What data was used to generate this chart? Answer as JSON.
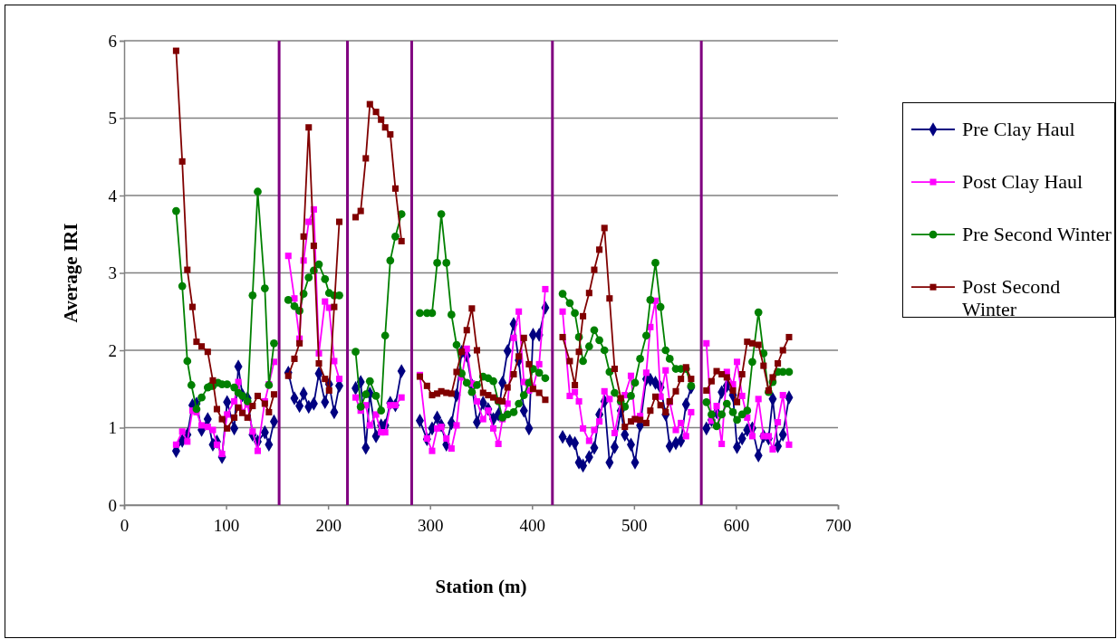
{
  "chart_data": {
    "type": "line",
    "xlabel": "Station (m)",
    "ylabel": "Average IRI",
    "xlim": [
      0,
      700
    ],
    "xticks": [
      0,
      100,
      200,
      300,
      400,
      500,
      600,
      700
    ],
    "ylim": [
      0,
      6
    ],
    "yticks": [
      0,
      1,
      2,
      3,
      4,
      5,
      6
    ],
    "grid": "y",
    "legend": "right",
    "ref_lines": [
      {
        "axis": "x",
        "value": 152,
        "color": "#800080"
      },
      {
        "axis": "x",
        "value": 219,
        "color": "#800080"
      },
      {
        "axis": "x",
        "value": 282,
        "color": "#800080"
      },
      {
        "axis": "x",
        "value": 420,
        "color": "#800080"
      },
      {
        "axis": "x",
        "value": 566,
        "color": "#800080"
      }
    ],
    "series": [
      {
        "name": "Pre Clay Haul",
        "color": "#000080",
        "marker": "diamond",
        "x": [
          51,
          57,
          62,
          67,
          71,
          76,
          82,
          87,
          91,
          96,
          101,
          108,
          112,
          116,
          121,
          126,
          131,
          138,
          142,
          147,
          152,
          161,
          167,
          172,
          176,
          181,
          186,
          191,
          197,
          201,
          206,
          211,
          219,
          227,
          232,
          237,
          241,
          247,
          252,
          256,
          261,
          266,
          272,
          282,
          290,
          297,
          302,
          307,
          311,
          316,
          321,
          326,
          331,
          336,
          341,
          346,
          352,
          357,
          362,
          367,
          371,
          376,
          382,
          387,
          392,
          397,
          401,
          407,
          413,
          420,
          430,
          437,
          442,
          446,
          450,
          456,
          461,
          466,
          471,
          476,
          481,
          487,
          491,
          497,
          501,
          506,
          512,
          516,
          521,
          526,
          531,
          535,
          541,
          546,
          551,
          556,
          566,
          571,
          576,
          581,
          586,
          591,
          597,
          601,
          606,
          611,
          616,
          622,
          627,
          632,
          636,
          641,
          646,
          652
        ],
        "values": [
          0.7,
          0.83,
          0.91,
          1.29,
          1.31,
          0.97,
          1.11,
          0.78,
          0.82,
          0.62,
          1.33,
          0.99,
          1.79,
          1.42,
          1.38,
          0.91,
          0.82,
          0.94,
          0.78,
          1.08,
          null,
          1.71,
          1.38,
          1.28,
          1.44,
          1.27,
          1.31,
          1.7,
          1.33,
          1.56,
          1.2,
          1.54,
          null,
          1.51,
          1.59,
          0.74,
          1.44,
          0.89,
          1.03,
          1.03,
          1.32,
          1.29,
          1.73,
          null,
          1.09,
          0.85,
          0.99,
          1.13,
          1.03,
          0.78,
          1.06,
          1.42,
          1.98,
          1.93,
          1.55,
          1.07,
          1.32,
          1.24,
          1.11,
          1.17,
          1.58,
          1.99,
          2.34,
          1.87,
          1.22,
          0.99,
          2.2,
          2.2,
          2.55,
          null,
          0.88,
          0.83,
          0.8,
          0.55,
          0.51,
          0.62,
          0.74,
          1.17,
          1.34,
          0.55,
          0.75,
          1.22,
          0.91,
          0.78,
          0.55,
          1.03,
          1.63,
          1.62,
          1.58,
          1.52,
          1.17,
          0.76,
          0.8,
          0.83,
          1.3,
          1.52,
          null,
          0.99,
          1.1,
          1.2,
          1.46,
          1.54,
          1.42,
          0.75,
          0.86,
          0.97,
          0.99,
          0.64,
          0.89,
          0.86,
          1.37,
          0.76,
          0.91,
          1.39
        ]
      },
      {
        "name": "Post Clay Haul",
        "color": "#ff00ff",
        "marker": "square",
        "x": [
          51,
          57,
          62,
          67,
          71,
          76,
          82,
          87,
          91,
          96,
          101,
          108,
          112,
          116,
          121,
          126,
          131,
          138,
          142,
          147,
          152,
          161,
          167,
          172,
          176,
          181,
          186,
          191,
          197,
          201,
          206,
          211,
          219,
          227,
          232,
          237,
          241,
          247,
          252,
          256,
          261,
          266,
          272,
          282,
          290,
          297,
          302,
          307,
          311,
          316,
          321,
          326,
          331,
          336,
          341,
          346,
          352,
          357,
          362,
          367,
          371,
          376,
          382,
          387,
          392,
          397,
          401,
          407,
          413,
          420,
          430,
          437,
          442,
          446,
          450,
          456,
          461,
          466,
          471,
          476,
          481,
          487,
          491,
          497,
          501,
          506,
          512,
          516,
          521,
          526,
          531,
          535,
          541,
          546,
          551,
          556,
          566,
          571,
          576,
          581,
          586,
          591,
          597,
          601,
          606,
          611,
          616,
          622,
          627,
          632,
          636,
          641,
          646,
          652
        ],
        "values": [
          0.78,
          0.95,
          0.82,
          1.22,
          1.2,
          1.03,
          1.01,
          0.97,
          0.78,
          0.66,
          1.17,
          1.34,
          1.59,
          1.2,
          1.3,
          0.95,
          0.7,
          1.34,
          1.56,
          1.85,
          null,
          3.22,
          2.67,
          2.15,
          3.16,
          3.66,
          3.82,
          1.96,
          2.63,
          2.55,
          1.86,
          1.63,
          null,
          1.39,
          1.22,
          1.29,
          1.03,
          1.17,
          0.94,
          0.94,
          1.29,
          1.29,
          1.39,
          null,
          1.68,
          0.86,
          0.7,
          0.99,
          1.01,
          0.86,
          0.73,
          1.03,
          1.65,
          2.02,
          1.57,
          1.34,
          1.11,
          1.22,
          0.99,
          0.79,
          1.11,
          1.31,
          2.16,
          2.5,
          1.59,
          1.48,
          1.52,
          1.82,
          2.79,
          null,
          2.5,
          1.41,
          1.46,
          1.34,
          0.99,
          0.83,
          0.97,
          1.08,
          1.47,
          1.37,
          0.93,
          1.33,
          1.42,
          1.67,
          1.11,
          1.15,
          1.71,
          2.3,
          2.64,
          1.4,
          1.74,
          1.33,
          0.97,
          1.06,
          0.89,
          1.2,
          null,
          2.09,
          1.09,
          1.28,
          0.79,
          1.72,
          1.56,
          1.85,
          1.41,
          1.13,
          0.89,
          1.37,
          0.89,
          0.89,
          0.72,
          1.07,
          1.42,
          0.78
        ]
      },
      {
        "name": "Pre Second Winter",
        "color": "#008000",
        "marker": "circle",
        "x": [
          51,
          57,
          62,
          66,
          71,
          76,
          82,
          85,
          87,
          92,
          96,
          101,
          108,
          112,
          116,
          121,
          126,
          131,
          138,
          142,
          147,
          152,
          161,
          167,
          172,
          176,
          181,
          186,
          191,
          197,
          201,
          206,
          211,
          219,
          227,
          232,
          237,
          241,
          247,
          252,
          256,
          261,
          266,
          272,
          282,
          290,
          297,
          302,
          307,
          311,
          316,
          321,
          326,
          331,
          336,
          341,
          346,
          352,
          357,
          362,
          367,
          371,
          376,
          382,
          387,
          392,
          397,
          401,
          407,
          413,
          420,
          430,
          437,
          442,
          446,
          450,
          456,
          461,
          466,
          471,
          476,
          481,
          487,
          491,
          497,
          501,
          506,
          512,
          516,
          521,
          526,
          531,
          535,
          541,
          546,
          551,
          556,
          566,
          571,
          576,
          581,
          586,
          591,
          597,
          601,
          606,
          611,
          616,
          622,
          627,
          632,
          636,
          641,
          646,
          652
        ],
        "values": [
          3.8,
          2.83,
          1.86,
          1.55,
          1.24,
          1.39,
          1.52,
          1.54,
          1.54,
          1.58,
          1.56,
          1.56,
          1.52,
          1.45,
          1.41,
          1.34,
          2.71,
          4.05,
          2.8,
          1.55,
          2.09,
          null,
          2.65,
          2.57,
          2.51,
          2.73,
          2.94,
          3.03,
          3.11,
          2.92,
          2.74,
          2.71,
          2.71,
          null,
          1.98,
          1.27,
          1.43,
          1.6,
          1.41,
          1.22,
          2.19,
          3.16,
          3.47,
          3.76,
          null,
          2.48,
          2.48,
          2.48,
          3.13,
          3.76,
          3.13,
          2.46,
          2.07,
          1.7,
          1.58,
          1.46,
          1.55,
          1.66,
          1.64,
          1.6,
          1.34,
          1.13,
          1.17,
          1.2,
          1.31,
          1.42,
          1.58,
          1.76,
          1.71,
          1.64,
          null,
          2.73,
          2.61,
          2.48,
          2.17,
          1.86,
          2.05,
          2.26,
          2.13,
          2.0,
          1.72,
          1.45,
          1.34,
          1.27,
          1.41,
          1.58,
          1.89,
          2.19,
          2.65,
          3.13,
          2.56,
          2.0,
          1.89,
          1.76,
          1.76,
          1.76,
          1.54,
          null,
          1.33,
          1.17,
          1.02,
          1.17,
          1.31,
          1.2,
          1.1,
          1.17,
          1.22,
          1.85,
          2.49,
          1.96,
          1.46,
          1.59,
          1.72,
          1.72,
          1.72
        ]
      },
      {
        "name": "Post Second Winter",
        "color": "#800000",
        "marker": "square",
        "x": [
          51,
          57,
          62,
          67,
          71,
          76,
          82,
          87,
          91,
          96,
          101,
          108,
          112,
          116,
          121,
          126,
          131,
          138,
          142,
          147,
          152,
          161,
          167,
          172,
          176,
          181,
          186,
          191,
          197,
          201,
          206,
          211,
          219,
          227,
          232,
          237,
          241,
          247,
          252,
          256,
          261,
          266,
          272,
          282,
          290,
          297,
          302,
          307,
          311,
          316,
          321,
          326,
          331,
          336,
          341,
          346,
          352,
          357,
          362,
          367,
          371,
          376,
          382,
          387,
          392,
          397,
          401,
          407,
          413,
          420,
          430,
          437,
          442,
          446,
          450,
          456,
          461,
          466,
          471,
          476,
          481,
          487,
          491,
          497,
          501,
          506,
          512,
          516,
          521,
          526,
          531,
          535,
          541,
          546,
          551,
          556,
          566,
          571,
          576,
          581,
          586,
          591,
          597,
          601,
          606,
          611,
          616,
          622,
          627,
          632,
          636,
          641,
          646,
          652
        ],
        "values": [
          5.87,
          4.44,
          3.04,
          2.56,
          2.11,
          2.05,
          1.98,
          1.61,
          1.24,
          1.11,
          0.99,
          1.13,
          1.26,
          1.19,
          1.13,
          1.28,
          1.41,
          1.31,
          1.2,
          1.43,
          null,
          1.67,
          1.89,
          2.09,
          3.47,
          4.88,
          3.35,
          1.83,
          1.63,
          1.48,
          2.56,
          3.66,
          null,
          3.72,
          3.8,
          4.48,
          5.18,
          5.08,
          4.98,
          4.88,
          4.79,
          4.09,
          3.41,
          null,
          1.66,
          1.54,
          1.42,
          1.44,
          1.47,
          1.45,
          1.44,
          1.72,
          1.98,
          2.26,
          2.54,
          2.0,
          1.45,
          1.42,
          1.39,
          1.35,
          1.34,
          1.52,
          1.69,
          1.92,
          2.16,
          1.82,
          1.5,
          1.45,
          1.36,
          null,
          2.17,
          1.86,
          1.55,
          1.98,
          2.44,
          2.74,
          3.04,
          3.3,
          3.58,
          2.67,
          1.76,
          1.38,
          1.01,
          1.08,
          1.11,
          1.1,
          1.06,
          1.22,
          1.4,
          1.29,
          1.2,
          1.34,
          1.47,
          1.63,
          1.78,
          1.63,
          null,
          1.48,
          1.6,
          1.73,
          1.69,
          1.65,
          1.48,
          1.33,
          1.69,
          2.11,
          2.09,
          2.07,
          1.8,
          1.48,
          1.65,
          1.83,
          2.0,
          2.17
        ]
      }
    ]
  }
}
